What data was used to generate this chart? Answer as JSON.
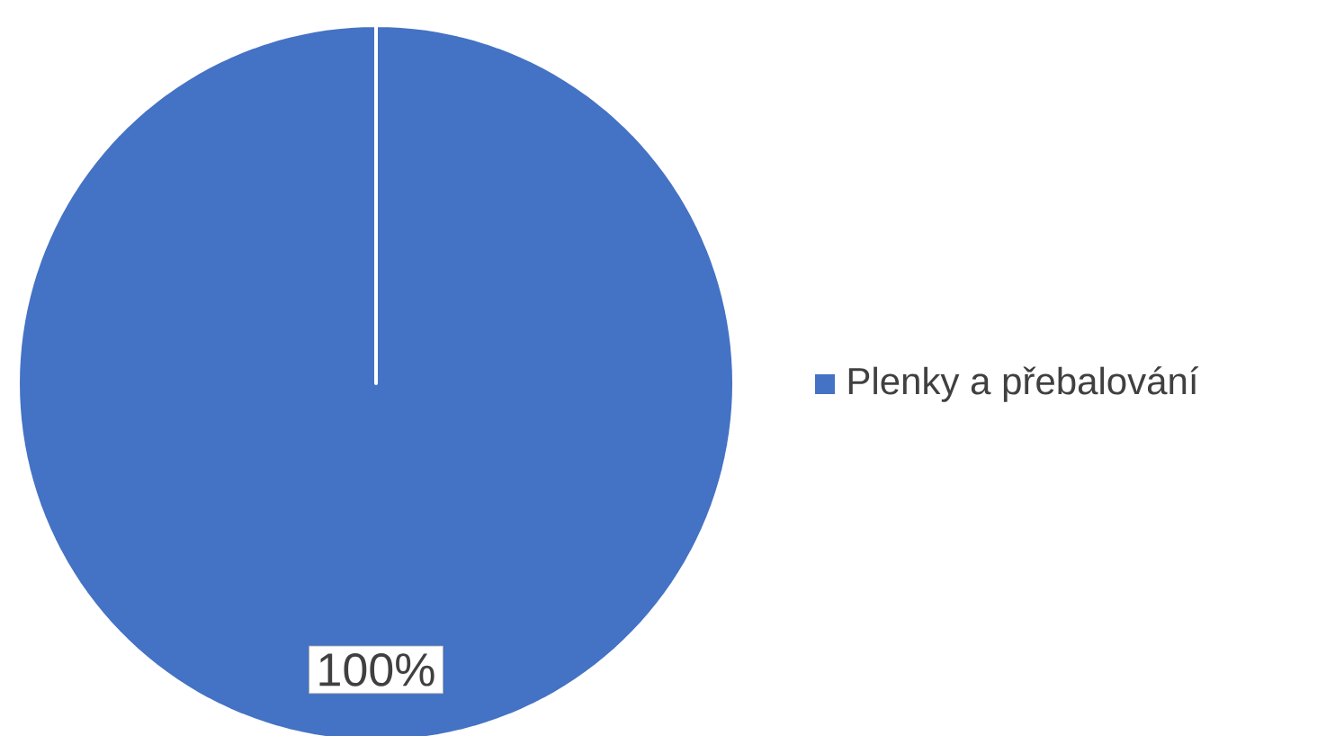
{
  "chart_data": {
    "type": "pie",
    "categories": [
      "Plenky a přebalování"
    ],
    "values": [
      100
    ],
    "colors": [
      "#4472c4"
    ],
    "value_labels": [
      "100%"
    ],
    "legend": "right"
  }
}
